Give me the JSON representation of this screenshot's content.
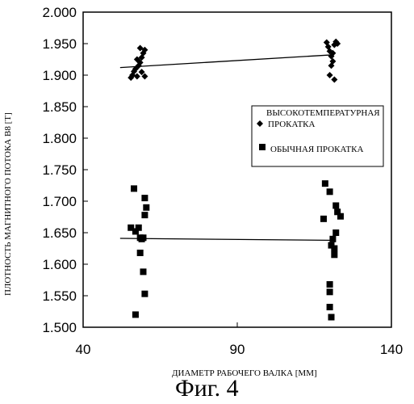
{
  "figure_caption": "Фиг. 4",
  "chart_data": {
    "type": "scatter",
    "title": "",
    "xlabel": "ДИАМЕТР РАБОЧЕГО ВАЛКА [MM]",
    "ylabel": "ПЛОТНОСТЬ МАГНИТНОГО ПОТОКА B8 [T]",
    "xlim": [
      40,
      140
    ],
    "ylim": [
      1.5,
      2.0
    ],
    "x_ticks": [
      "40",
      "90",
      "140"
    ],
    "y_ticks": [
      "1.500",
      "1.550",
      "1.600",
      "1.650",
      "1.700",
      "1.750",
      "1.800",
      "1.850",
      "1.900",
      "1.950",
      "2.000"
    ],
    "grid": false,
    "legend_position": "right",
    "series": [
      {
        "name": "ВЫСОКОТЕМПЕРАТУРНАЯ ПРОКАТКА",
        "marker": "diamond",
        "points": [
          [
            55.5,
            1.896
          ],
          [
            56,
            1.9
          ],
          [
            56.5,
            1.906
          ],
          [
            57,
            1.91
          ],
          [
            57.5,
            1.898
          ],
          [
            58,
            1.915
          ],
          [
            58.5,
            1.92
          ],
          [
            59,
            1.928
          ],
          [
            59.5,
            1.935
          ],
          [
            60,
            1.94
          ],
          [
            58.5,
            1.943
          ],
          [
            59,
            1.905
          ],
          [
            60,
            1.898
          ],
          [
            57.5,
            1.925
          ],
          [
            119,
            1.952
          ],
          [
            119.5,
            1.945
          ],
          [
            120,
            1.938
          ],
          [
            120.5,
            1.93
          ],
          [
            121,
            1.922
          ],
          [
            121.5,
            1.948
          ],
          [
            122,
            1.953
          ],
          [
            122.5,
            1.95
          ],
          [
            121,
            1.935
          ],
          [
            120,
            1.9
          ],
          [
            121.5,
            1.893
          ],
          [
            120.5,
            1.915
          ]
        ],
        "trendline": [
          [
            52,
            1.912
          ],
          [
            120,
            1.932
          ]
        ]
      },
      {
        "name": "ОБЫЧНАЯ ПРОКАТКА",
        "marker": "square",
        "points": [
          [
            55.5,
            1.658
          ],
          [
            57,
            1.652
          ],
          [
            56.5,
            1.72
          ],
          [
            58,
            1.658
          ],
          [
            58.5,
            1.642
          ],
          [
            59,
            1.64
          ],
          [
            59.5,
            1.642
          ],
          [
            60,
            1.705
          ],
          [
            60.5,
            1.69
          ],
          [
            60,
            1.678
          ],
          [
            58.5,
            1.618
          ],
          [
            59.5,
            1.588
          ],
          [
            60,
            1.553
          ],
          [
            57,
            1.52
          ],
          [
            118,
            1.672
          ],
          [
            118.5,
            1.728
          ],
          [
            120,
            1.715
          ],
          [
            120.5,
            1.63
          ],
          [
            121,
            1.64
          ],
          [
            122,
            1.65
          ],
          [
            121.5,
            1.625
          ],
          [
            122.5,
            1.683
          ],
          [
            122,
            1.693
          ],
          [
            123.5,
            1.676
          ],
          [
            121.5,
            1.615
          ],
          [
            120,
            1.568
          ],
          [
            120,
            1.556
          ],
          [
            120,
            1.532
          ],
          [
            120.5,
            1.516
          ]
        ],
        "trendline": [
          [
            52,
            1.641
          ],
          [
            120,
            1.638
          ]
        ]
      }
    ]
  }
}
